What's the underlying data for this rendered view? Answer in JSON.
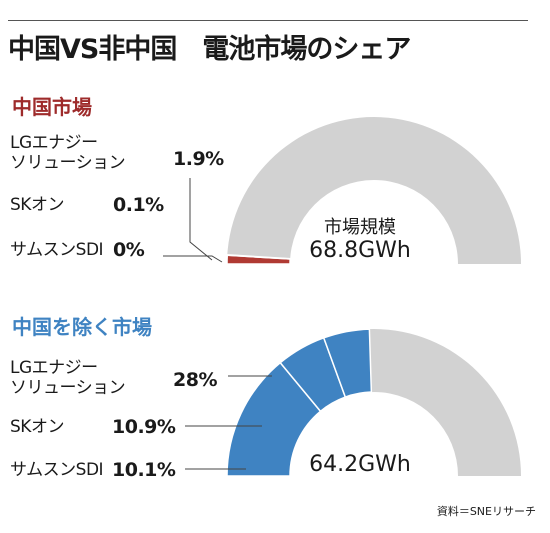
{
  "header": {
    "title": "中国VS非中国　電池市場のシェア"
  },
  "source": "資料＝SNEリサーチ",
  "chart_data": [
    {
      "type": "pie",
      "subtype": "semi-donut",
      "title": "中国市場",
      "categories": [
        "LGエナジーソリューション",
        "SKオン",
        "サムスンSDI"
      ],
      "values": [
        1.9,
        0.1,
        0
      ],
      "value_labels": [
        "1.9%",
        "0.1%",
        "0%"
      ],
      "category_lines": [
        [
          "LGエナジー",
          "ソリューション"
        ],
        [
          "SKオン"
        ],
        [
          "サムスンSDI"
        ]
      ],
      "center_label": "市場規模",
      "center_value": "68.8GWh",
      "colors": {
        "segment": "#b03a33",
        "rest": "#d2d2d2",
        "title": "#9e2b2b"
      }
    },
    {
      "type": "pie",
      "subtype": "semi-donut",
      "title": "中国を除く市場",
      "categories": [
        "LGエナジーソリューション",
        "SKオン",
        "サムスンSDI"
      ],
      "values": [
        28,
        10.9,
        10.1
      ],
      "value_labels": [
        "28%",
        "10.9%",
        "10.1%"
      ],
      "category_lines": [
        [
          "LGエナジー",
          "ソリューション"
        ],
        [
          "SKオン"
        ],
        [
          "サムスンSDI"
        ]
      ],
      "center_label": "",
      "center_value": "64.2GWh",
      "colors": {
        "segment": "#3f83c2",
        "rest": "#d2d2d2",
        "title": "#3f83c2"
      }
    }
  ]
}
